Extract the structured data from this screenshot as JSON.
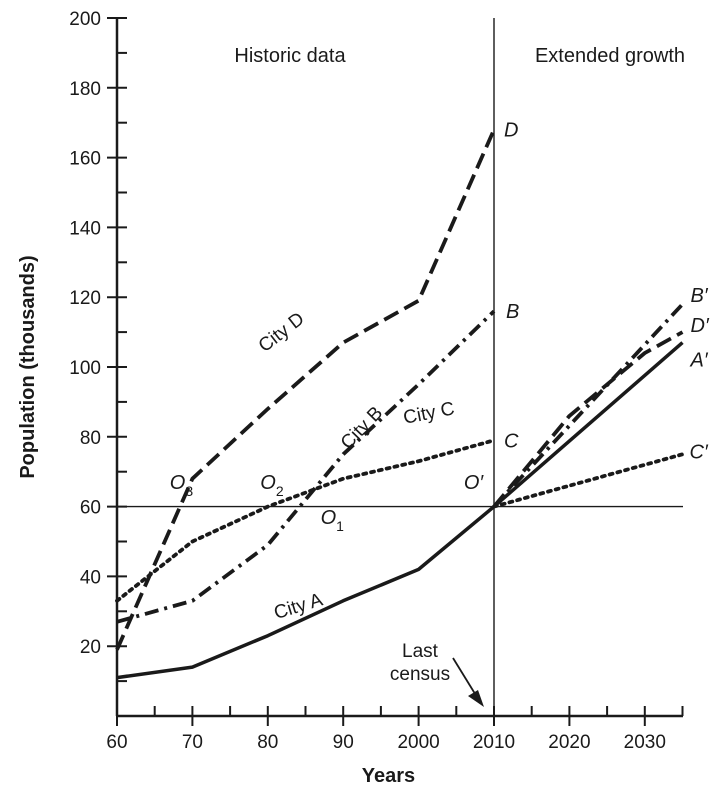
{
  "chart_data": {
    "type": "line",
    "xlabel": "Years",
    "ylabel": "Population (thousands)",
    "x_ticks": [
      "60",
      "70",
      "80",
      "90",
      "2000",
      "2010",
      "2020",
      "2030"
    ],
    "y_ticks": [
      "20",
      "40",
      "60",
      "80",
      "100",
      "120",
      "140",
      "160",
      "180",
      "200"
    ],
    "xlim": [
      1960,
      2035
    ],
    "ylim": [
      0,
      200
    ],
    "section_labels": {
      "historic": "Historic data",
      "extended": "Extended growth"
    },
    "last_census": {
      "label_line1": "Last",
      "label_line2": "census",
      "year": 2010
    },
    "reference_line_y": 60,
    "series": [
      {
        "name": "City A",
        "style": "solid",
        "points": [
          [
            1960,
            11
          ],
          [
            1970,
            14
          ],
          [
            1980,
            23
          ],
          [
            1990,
            33
          ],
          [
            2000,
            42
          ],
          [
            2010,
            60
          ]
        ],
        "end_label": "",
        "projection": [
          [
            2010,
            60
          ],
          [
            2035,
            107
          ]
        ],
        "projection_label": "A′"
      },
      {
        "name": "City B",
        "style": "dashdot",
        "points": [
          [
            1960,
            27
          ],
          [
            1970,
            33
          ],
          [
            1980,
            49
          ],
          [
            1990,
            75
          ],
          [
            2000,
            95
          ],
          [
            2010,
            116
          ]
        ],
        "end_label": "B",
        "projection": [
          [
            2010,
            60
          ],
          [
            2035,
            118
          ]
        ],
        "projection_label": "B′"
      },
      {
        "name": "City C",
        "style": "dotted",
        "points": [
          [
            1960,
            33
          ],
          [
            1970,
            50
          ],
          [
            1980,
            60
          ],
          [
            1990,
            68
          ],
          [
            2000,
            73
          ],
          [
            2010,
            79
          ]
        ],
        "end_label": "C",
        "projection": [
          [
            2010,
            60
          ],
          [
            2035,
            75
          ]
        ],
        "projection_label": "C′"
      },
      {
        "name": "City D",
        "style": "dashed",
        "points": [
          [
            1960,
            19
          ],
          [
            1970,
            68
          ],
          [
            1980,
            88
          ],
          [
            1990,
            107
          ],
          [
            2000,
            119
          ],
          [
            2010,
            168
          ]
        ],
        "end_label": "D",
        "projection": [
          [
            2010,
            60
          ],
          [
            2020,
            86
          ],
          [
            2030,
            104
          ],
          [
            2035,
            110
          ]
        ],
        "projection_label": "D′"
      }
    ],
    "origin_labels": [
      {
        "base": "O",
        "sub": "1",
        "x": 1987,
        "y": 55
      },
      {
        "base": "O",
        "sub": "2",
        "x": 1979,
        "y": 65
      },
      {
        "base": "O",
        "sub": "3",
        "x": 1967,
        "y": 65
      },
      {
        "base": "O′",
        "sub": "",
        "x": 2006,
        "y": 65
      }
    ],
    "colors": {
      "line": "#1a1a1a",
      "background": "#ffffff"
    }
  }
}
